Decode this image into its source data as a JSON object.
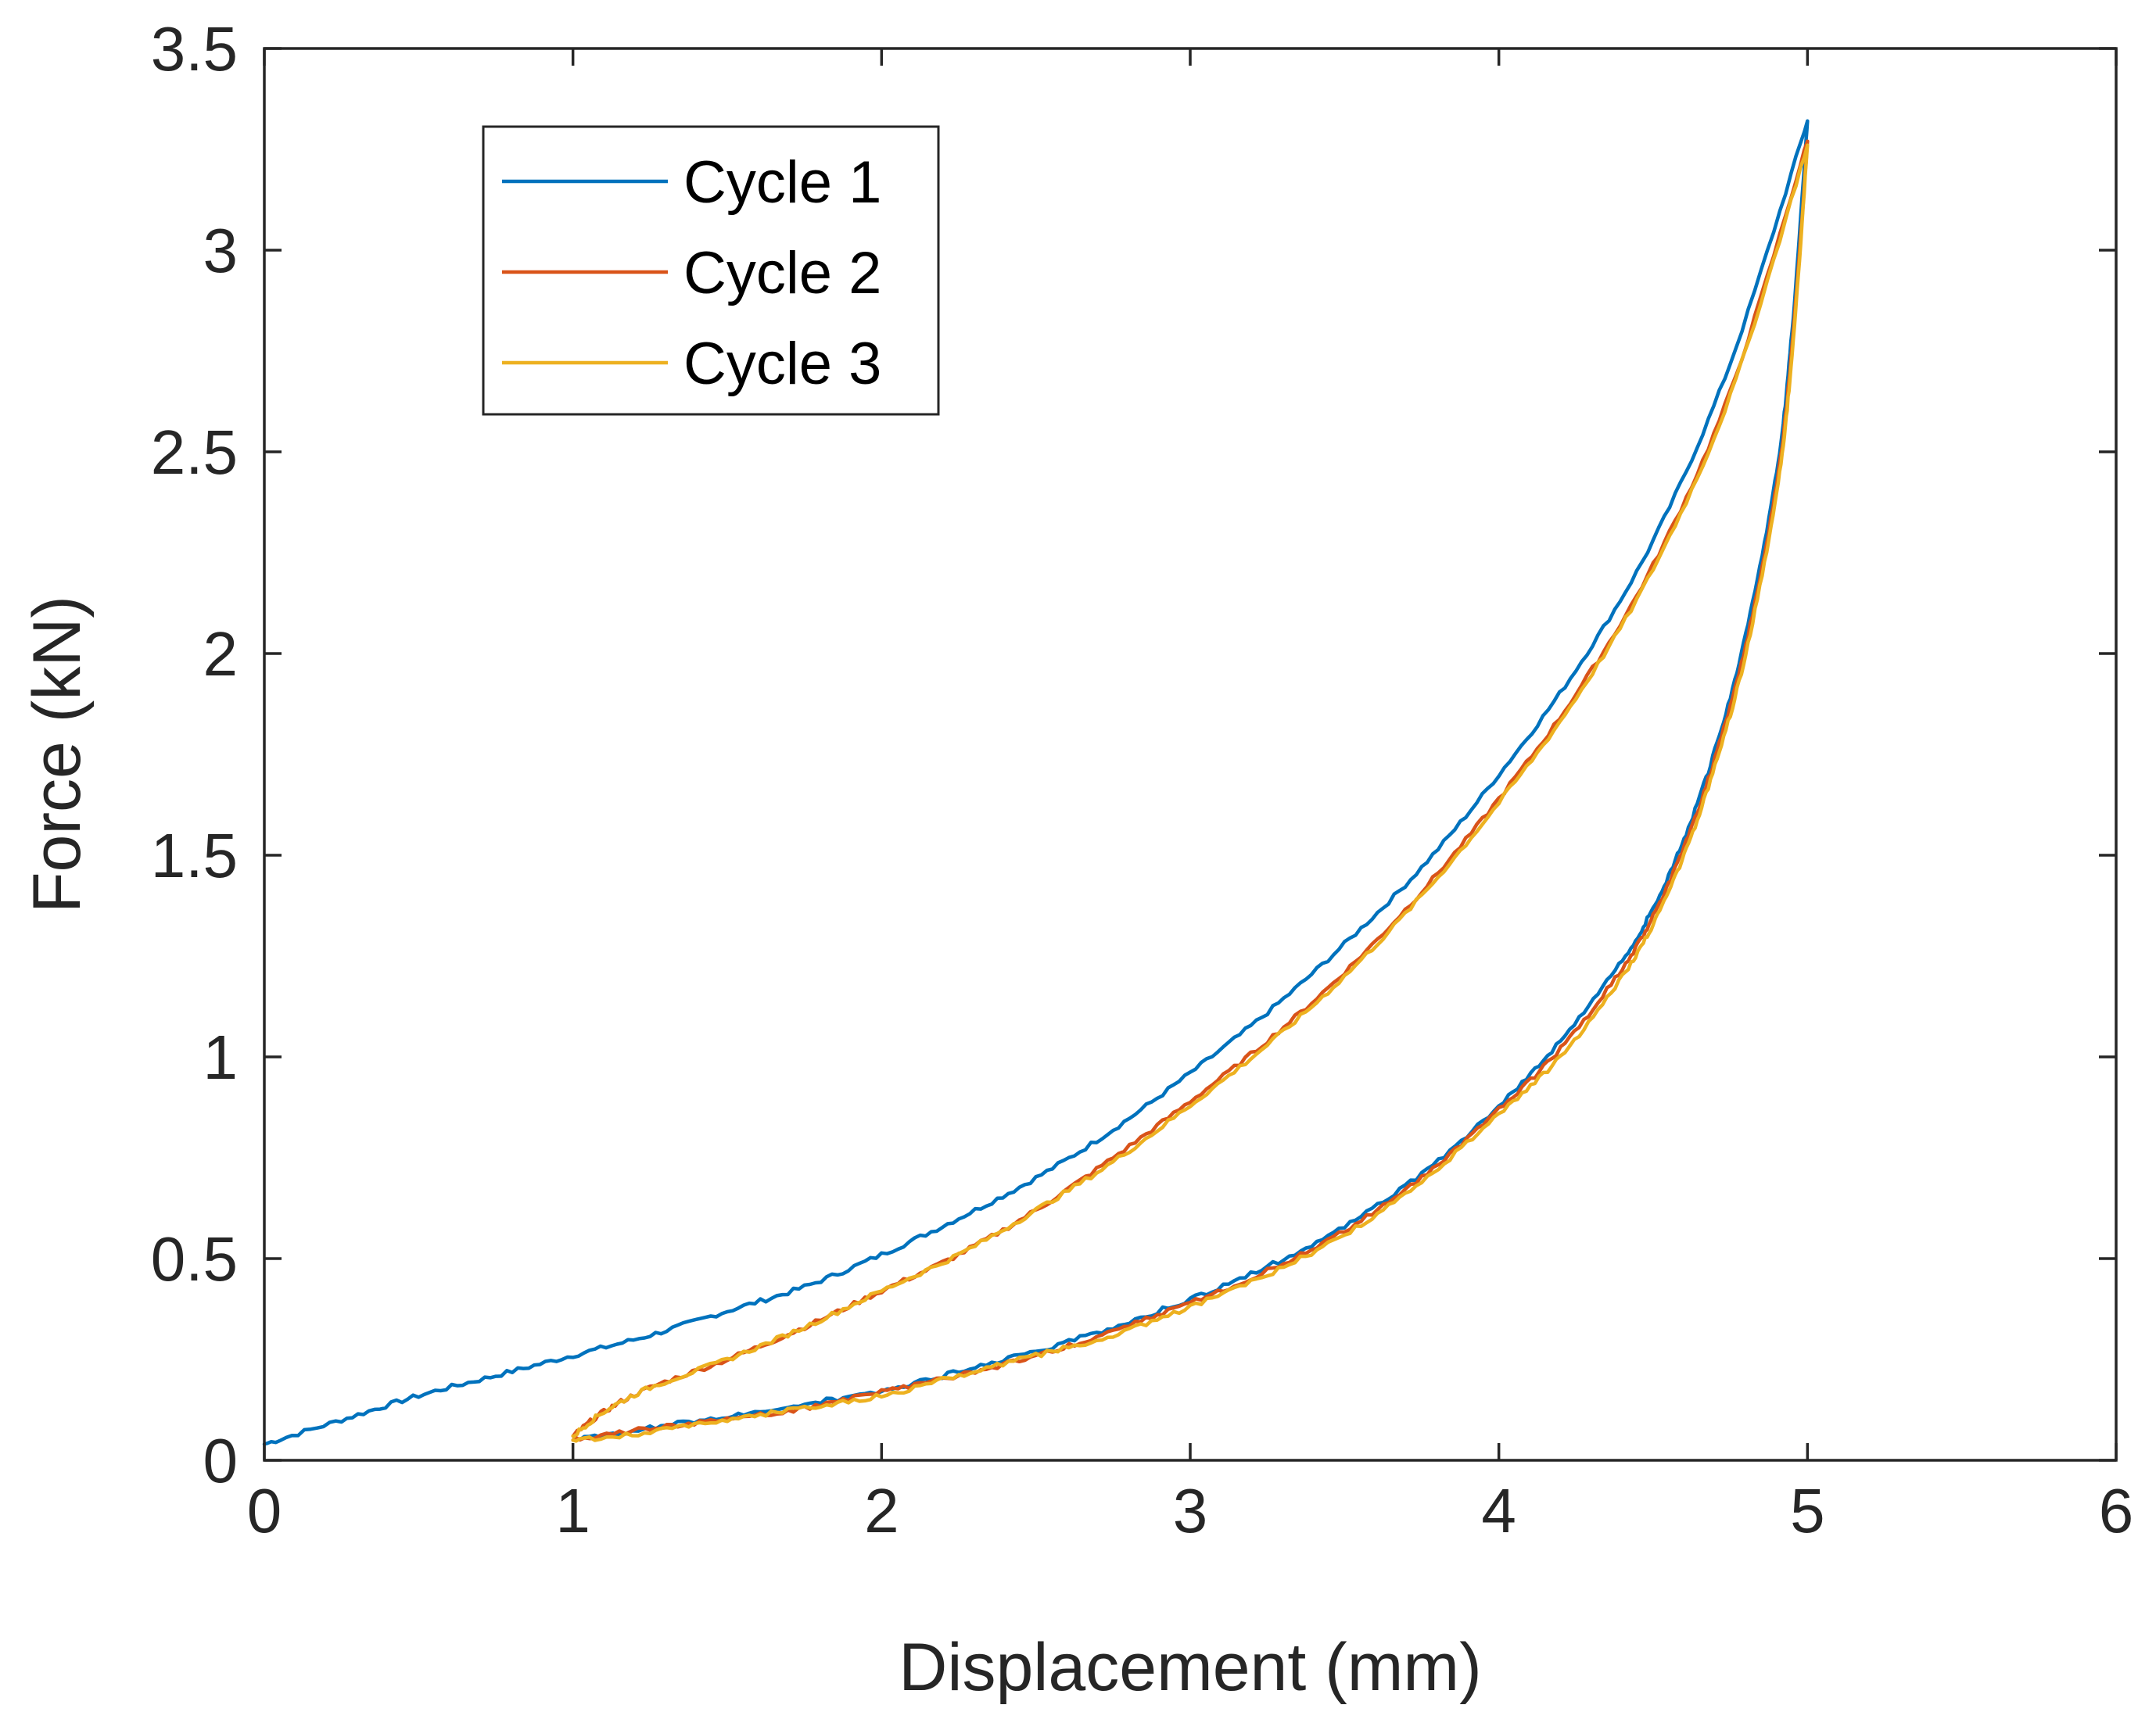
{
  "chart_data": {
    "type": "line",
    "title": "",
    "xlabel": "Displacement (mm)",
    "ylabel": "Force (kN)",
    "xlim": [
      0,
      6
    ],
    "ylim": [
      0,
      3.5
    ],
    "xticks": [
      "0",
      "1",
      "2",
      "3",
      "4",
      "5",
      "6"
    ],
    "yticks": [
      "0",
      "0.5",
      "1",
      "1.5",
      "2",
      "2.5",
      "3",
      "3.5"
    ],
    "grid": false,
    "box": true,
    "legend_position": "top-left (inset)",
    "series": [
      {
        "name": "Cycle 1",
        "color": "#0072BD",
        "loading": [
          [
            0.0,
            0.04
          ],
          [
            0.25,
            0.1
          ],
          [
            0.5,
            0.16
          ],
          [
            0.75,
            0.21
          ],
          [
            1.0,
            0.26
          ],
          [
            1.25,
            0.31
          ],
          [
            1.5,
            0.37
          ],
          [
            1.75,
            0.43
          ],
          [
            2.0,
            0.51
          ],
          [
            2.25,
            0.6
          ],
          [
            2.5,
            0.7
          ],
          [
            2.75,
            0.82
          ],
          [
            3.0,
            0.96
          ],
          [
            3.25,
            1.11
          ],
          [
            3.5,
            1.28
          ],
          [
            3.75,
            1.47
          ],
          [
            4.0,
            1.7
          ],
          [
            4.25,
            1.96
          ],
          [
            4.5,
            2.28
          ],
          [
            4.75,
            2.72
          ],
          [
            5.0,
            3.32
          ]
        ],
        "unloading": [
          [
            5.0,
            3.32
          ],
          [
            4.95,
            2.8
          ],
          [
            4.9,
            2.45
          ],
          [
            4.8,
            2.05
          ],
          [
            4.7,
            1.76
          ],
          [
            4.6,
            1.54
          ],
          [
            4.5,
            1.37
          ],
          [
            4.4,
            1.24
          ],
          [
            4.2,
            1.04
          ],
          [
            4.0,
            0.88
          ],
          [
            3.75,
            0.71
          ],
          [
            3.5,
            0.58
          ],
          [
            3.25,
            0.48
          ],
          [
            3.0,
            0.4
          ],
          [
            2.75,
            0.33
          ],
          [
            2.5,
            0.27
          ],
          [
            2.25,
            0.22
          ],
          [
            2.0,
            0.17
          ],
          [
            1.75,
            0.14
          ],
          [
            1.5,
            0.11
          ],
          [
            1.25,
            0.08
          ],
          [
            1.0,
            0.05
          ]
        ]
      },
      {
        "name": "Cycle 2",
        "color": "#D95319",
        "loading": [
          [
            1.0,
            0.06
          ],
          [
            1.1,
            0.12
          ],
          [
            1.25,
            0.18
          ],
          [
            1.5,
            0.25
          ],
          [
            1.75,
            0.33
          ],
          [
            2.0,
            0.42
          ],
          [
            2.25,
            0.51
          ],
          [
            2.5,
            0.62
          ],
          [
            2.75,
            0.75
          ],
          [
            3.0,
            0.89
          ],
          [
            3.25,
            1.04
          ],
          [
            3.5,
            1.21
          ],
          [
            3.75,
            1.41
          ],
          [
            4.0,
            1.64
          ],
          [
            4.25,
            1.9
          ],
          [
            4.5,
            2.22
          ],
          [
            4.75,
            2.65
          ],
          [
            5.0,
            3.27
          ]
        ],
        "unloading": [
          [
            5.0,
            3.27
          ],
          [
            4.95,
            2.76
          ],
          [
            4.9,
            2.42
          ],
          [
            4.8,
            2.02
          ],
          [
            4.7,
            1.74
          ],
          [
            4.6,
            1.52
          ],
          [
            4.5,
            1.35
          ],
          [
            4.4,
            1.22
          ],
          [
            4.2,
            1.02
          ],
          [
            4.0,
            0.87
          ],
          [
            3.75,
            0.7
          ],
          [
            3.5,
            0.57
          ],
          [
            3.25,
            0.47
          ],
          [
            3.0,
            0.39
          ],
          [
            2.75,
            0.32
          ],
          [
            2.5,
            0.26
          ],
          [
            2.25,
            0.21
          ],
          [
            2.0,
            0.17
          ],
          [
            1.75,
            0.13
          ],
          [
            1.5,
            0.1
          ],
          [
            1.25,
            0.08
          ],
          [
            1.0,
            0.05
          ]
        ]
      },
      {
        "name": "Cycle 3",
        "color": "#EDB120",
        "loading": [
          [
            1.0,
            0.06
          ],
          [
            1.1,
            0.12
          ],
          [
            1.25,
            0.18
          ],
          [
            1.5,
            0.25
          ],
          [
            1.75,
            0.33
          ],
          [
            2.0,
            0.42
          ],
          [
            2.25,
            0.51
          ],
          [
            2.5,
            0.62
          ],
          [
            2.75,
            0.74
          ],
          [
            3.0,
            0.88
          ],
          [
            3.25,
            1.03
          ],
          [
            3.5,
            1.2
          ],
          [
            3.75,
            1.4
          ],
          [
            4.0,
            1.63
          ],
          [
            4.25,
            1.89
          ],
          [
            4.5,
            2.21
          ],
          [
            4.75,
            2.64
          ],
          [
            5.0,
            3.26
          ]
        ],
        "unloading": [
          [
            5.0,
            3.26
          ],
          [
            4.95,
            2.74
          ],
          [
            4.9,
            2.4
          ],
          [
            4.8,
            2.0
          ],
          [
            4.7,
            1.72
          ],
          [
            4.6,
            1.5
          ],
          [
            4.5,
            1.33
          ],
          [
            4.4,
            1.2
          ],
          [
            4.2,
            1.0
          ],
          [
            4.0,
            0.86
          ],
          [
            3.75,
            0.69
          ],
          [
            3.5,
            0.56
          ],
          [
            3.25,
            0.46
          ],
          [
            3.0,
            0.38
          ],
          [
            2.75,
            0.31
          ],
          [
            2.5,
            0.26
          ],
          [
            2.25,
            0.21
          ],
          [
            2.0,
            0.16
          ],
          [
            1.75,
            0.13
          ],
          [
            1.5,
            0.1
          ],
          [
            1.25,
            0.07
          ],
          [
            1.0,
            0.05
          ]
        ]
      }
    ]
  }
}
